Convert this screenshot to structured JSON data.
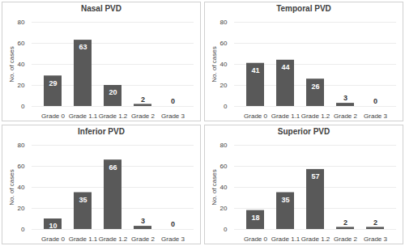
{
  "chart_data": [
    {
      "type": "bar",
      "title": "Nasal PVD",
      "ylabel": "No. of cases",
      "categories": [
        "Grade 0",
        "Grade 1.1",
        "Grade 1.2",
        "Grade 2",
        "Grade 3"
      ],
      "values": [
        29,
        63,
        20,
        2,
        0
      ],
      "color": "#595959",
      "ylim": [
        0,
        80
      ],
      "yticks": [
        0,
        20,
        40,
        60,
        80
      ],
      "grid": true,
      "data_labels": true
    },
    {
      "type": "bar",
      "title": "Temporal PVD",
      "ylabel": "No. of cases",
      "categories": [
        "Grade 0",
        "Grade 1.1",
        "Grade 1.2",
        "Grade 2",
        "Grade 3"
      ],
      "values": [
        41,
        44,
        26,
        3,
        0
      ],
      "color": "#595959",
      "ylim": [
        0,
        80
      ],
      "yticks": [
        0,
        20,
        40,
        60,
        80
      ],
      "grid": true,
      "data_labels": true
    },
    {
      "type": "bar",
      "title": "Inferior PVD",
      "ylabel": "No. of cases",
      "categories": [
        "Grade 0",
        "Grade 1.1",
        "Grade 1.2",
        "Grade 2",
        "Grade 3"
      ],
      "values": [
        10,
        35,
        66,
        3,
        0
      ],
      "color": "#595959",
      "ylim": [
        0,
        80
      ],
      "yticks": [
        0,
        20,
        40,
        60,
        80
      ],
      "grid": true,
      "data_labels": true
    },
    {
      "type": "bar",
      "title": "Superior PVD",
      "ylabel": "No. of cases",
      "categories": [
        "Grade 0",
        "Grade 1.1",
        "Grade 1.2",
        "Grade 2",
        "Grade 3"
      ],
      "values": [
        18,
        35,
        57,
        2,
        2
      ],
      "color": "#595959",
      "ylim": [
        0,
        80
      ],
      "yticks": [
        0,
        20,
        40,
        60,
        80
      ],
      "grid": true,
      "data_labels": true
    }
  ]
}
